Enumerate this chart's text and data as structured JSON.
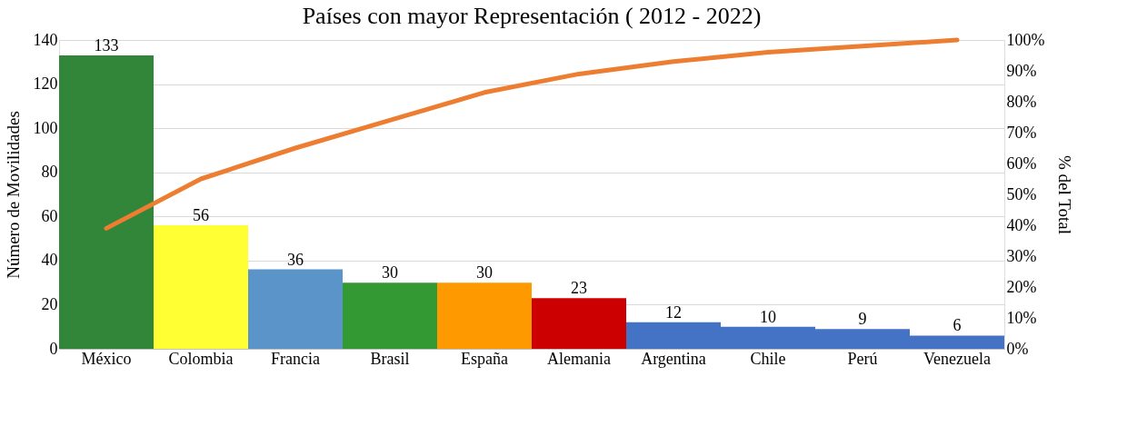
{
  "chart_data": {
    "type": "bar",
    "title": "Países con mayor Representación ( 2012 - 2022)",
    "ylabel": "Número de Movilidades",
    "y2label": "% del Total",
    "categories": [
      "México",
      "Colombia",
      "Francia",
      "Brasil",
      "España",
      "Alemania",
      "Argentina",
      "Chile",
      "Perú",
      "Venezuela"
    ],
    "series": [
      {
        "values": [
          133,
          56,
          36,
          30,
          30,
          23,
          12,
          10,
          9,
          6
        ],
        "value_labels": [
          "133",
          "56",
          "36",
          "30",
          "30",
          "23",
          "12",
          "10",
          "9",
          "6"
        ],
        "colors": [
          "#31863a",
          "#ffff33",
          "#5b94c8",
          "#339933",
          "#ff9900",
          "#cc0000",
          "#4472c4",
          "#4472c4",
          "#4472c4",
          "#4472c4"
        ]
      },
      {
        "type": "line",
        "axis": "y2",
        "color": "#ed7d31",
        "values": [
          39,
          55,
          65,
          74,
          83,
          89,
          93,
          96,
          98,
          100
        ]
      }
    ],
    "ylim": [
      0,
      140
    ],
    "yticks": [
      0,
      20,
      40,
      60,
      80,
      100,
      120,
      140
    ],
    "y2lim": [
      0,
      100
    ],
    "y2ticks": [
      {
        "value": 0,
        "label": "0%"
      },
      {
        "value": 10,
        "label": "10%"
      },
      {
        "value": 20,
        "label": "20%"
      },
      {
        "value": 30,
        "label": "30%"
      },
      {
        "value": 40,
        "label": "40%"
      },
      {
        "value": 50,
        "label": "50%"
      },
      {
        "value": 60,
        "label": "60%"
      },
      {
        "value": 70,
        "label": "70%"
      },
      {
        "value": 80,
        "label": "80%"
      },
      {
        "value": 90,
        "label": "90%"
      },
      {
        "value": 100,
        "label": "100%"
      }
    ],
    "grid": "y",
    "marker": "none",
    "line_style": "solid"
  }
}
